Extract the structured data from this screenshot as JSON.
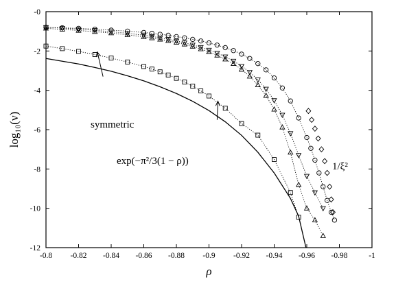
{
  "chart_data": {
    "type": "scatter",
    "title": "",
    "xlabel": "ρ",
    "ylabel": "log₁₀(ν)",
    "xlim": [
      -0.8,
      -1.0
    ],
    "ylim": [
      -12,
      0
    ],
    "xticks": [
      "-0.8",
      "-0.82",
      "-0.84",
      "-0.86",
      "-0.88",
      "-0.9",
      "-0.92",
      "-0.94",
      "-0.96",
      "-0.98",
      "-1"
    ],
    "yticks": [
      "-0",
      "-2",
      "-4",
      "-6",
      "-8",
      "-10",
      "-12"
    ],
    "grid": false,
    "legend": "none",
    "annotations": [
      {
        "id": "symmetric",
        "text": "symmetric",
        "arrow_from": [
          -0.835,
          -3.3
        ],
        "arrow_to": [
          -0.8315,
          -2.05
        ]
      },
      {
        "id": "exp",
        "text": "exp(−π²/3(1 − ρ))",
        "arrow_from": [
          -0.905,
          -5.5
        ],
        "arrow_to": [
          -0.9055,
          -4.55
        ]
      },
      {
        "id": "xi",
        "text": "1/ξ²"
      }
    ],
    "series": [
      {
        "marker": "circle",
        "linestyle": "dotted",
        "x": [
          -0.8,
          -0.81,
          -0.82,
          -0.83,
          -0.84,
          -0.85,
          -0.86,
          -0.865,
          -0.87,
          -0.875,
          -0.88,
          -0.885,
          -0.89,
          -0.895,
          -0.9,
          -0.905,
          -0.91,
          -0.915,
          -0.92,
          -0.925,
          -0.93,
          -0.935,
          -0.94,
          -0.945,
          -0.95,
          -0.955,
          -0.96,
          -0.9625,
          -0.965,
          -0.9675,
          -0.97,
          -0.9725,
          -0.975,
          -0.977
        ],
        "y": [
          -0.8,
          -0.82,
          -0.85,
          -0.89,
          -0.94,
          -0.99,
          -1.06,
          -1.1,
          -1.15,
          -1.2,
          -1.27,
          -1.33,
          -1.41,
          -1.49,
          -1.59,
          -1.7,
          -1.83,
          -1.98,
          -2.16,
          -2.38,
          -2.64,
          -2.96,
          -3.37,
          -3.88,
          -4.54,
          -5.41,
          -6.4,
          -6.95,
          -7.55,
          -8.2,
          -8.9,
          -9.6,
          -10.2,
          -10.6
        ]
      },
      {
        "marker": "diamond",
        "linestyle": "none",
        "x": [
          -0.961,
          -0.963,
          -0.965,
          -0.967,
          -0.969,
          -0.971,
          -0.9725,
          -0.974,
          -0.975,
          -0.976
        ],
        "y": [
          -5.05,
          -5.5,
          -5.95,
          -6.45,
          -7.0,
          -7.6,
          -8.2,
          -8.9,
          -9.55,
          -10.2
        ]
      },
      {
        "marker": "triangle-down",
        "linestyle": "dotted",
        "x": [
          -0.8,
          -0.81,
          -0.82,
          -0.83,
          -0.84,
          -0.85,
          -0.86,
          -0.865,
          -0.87,
          -0.875,
          -0.88,
          -0.885,
          -0.89,
          -0.895,
          -0.9,
          -0.905,
          -0.91,
          -0.915,
          -0.92,
          -0.925,
          -0.93,
          -0.935,
          -0.94,
          -0.945,
          -0.95,
          -0.955,
          -0.96,
          -0.965,
          -0.97
        ],
        "y": [
          -0.8,
          -0.84,
          -0.89,
          -0.95,
          -1.02,
          -1.1,
          -1.2,
          -1.26,
          -1.33,
          -1.4,
          -1.49,
          -1.58,
          -1.69,
          -1.81,
          -1.95,
          -2.11,
          -2.29,
          -2.51,
          -2.77,
          -3.08,
          -3.46,
          -3.93,
          -4.51,
          -5.25,
          -6.19,
          -7.3,
          -8.36,
          -9.2,
          -10.0
        ]
      },
      {
        "marker": "triangle-up",
        "linestyle": "dotted",
        "x": [
          -0.8,
          -0.81,
          -0.82,
          -0.83,
          -0.84,
          -0.85,
          -0.86,
          -0.865,
          -0.87,
          -0.875,
          -0.88,
          -0.885,
          -0.89,
          -0.895,
          -0.9,
          -0.905,
          -0.91,
          -0.915,
          -0.92,
          -0.925,
          -0.93,
          -0.935,
          -0.94,
          -0.945,
          -0.95,
          -0.955,
          -0.96,
          -0.965,
          -0.97
        ],
        "y": [
          -0.85,
          -0.9,
          -0.96,
          -1.02,
          -1.09,
          -1.18,
          -1.28,
          -1.34,
          -1.41,
          -1.48,
          -1.57,
          -1.66,
          -1.77,
          -1.9,
          -2.05,
          -2.22,
          -2.42,
          -2.65,
          -2.94,
          -3.29,
          -3.73,
          -4.27,
          -4.97,
          -5.88,
          -7.16,
          -8.8,
          -10.0,
          -10.6,
          -11.4
        ]
      },
      {
        "marker": "square",
        "linestyle": "dotted",
        "x": [
          -0.8,
          -0.81,
          -0.82,
          -0.83,
          -0.84,
          -0.85,
          -0.86,
          -0.865,
          -0.87,
          -0.875,
          -0.88,
          -0.885,
          -0.89,
          -0.895,
          -0.9,
          -0.91,
          -0.92,
          -0.93,
          -0.94,
          -0.95,
          -0.955
        ],
        "y": [
          -1.75,
          -1.88,
          -2.02,
          -2.18,
          -2.36,
          -2.56,
          -2.79,
          -2.92,
          -3.06,
          -3.22,
          -3.39,
          -3.58,
          -3.79,
          -4.03,
          -4.29,
          -4.91,
          -5.69,
          -6.28,
          -7.52,
          -9.2,
          -10.45
        ]
      },
      {
        "marker": "none",
        "linestyle": "solid",
        "x": [
          -0.8,
          -0.81,
          -0.82,
          -0.83,
          -0.84,
          -0.85,
          -0.86,
          -0.87,
          -0.88,
          -0.89,
          -0.9,
          -0.91,
          -0.92,
          -0.93,
          -0.94,
          -0.95,
          -0.955,
          -0.9595
        ],
        "y": [
          -2.38,
          -2.52,
          -2.66,
          -2.84,
          -3.03,
          -3.26,
          -3.52,
          -3.82,
          -4.16,
          -4.56,
          -5.03,
          -5.6,
          -6.29,
          -7.15,
          -8.2,
          -9.5,
          -10.4,
          -12.0
        ]
      }
    ]
  }
}
